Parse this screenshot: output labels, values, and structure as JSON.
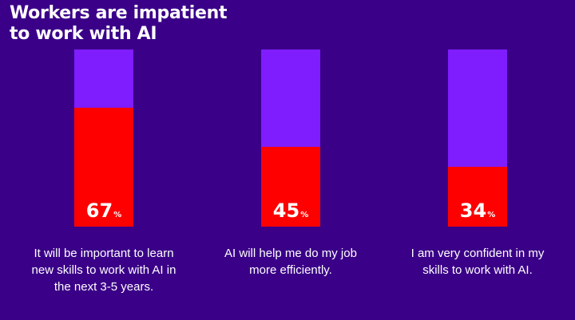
{
  "title": "Workers are impatient to work with AI",
  "colors": {
    "background": "#3a0088",
    "bar_track": "#7f1dff",
    "bar_fill": "#ff0000",
    "text": "#ffffff"
  },
  "chart_data": {
    "type": "bar",
    "orientation": "vertical",
    "stacked_to_100": true,
    "title": "Workers are impatient to work with AI",
    "unit": "%",
    "ylim": [
      0,
      100
    ],
    "categories": [
      "It will be important to learn new skills to work with AI in the next 3-5 years.",
      "AI will help me do my job more efficiently.",
      "I am very confident in my skills to work with AI."
    ],
    "values": [
      67,
      45,
      34
    ],
    "value_suffix": "%",
    "grid": false,
    "legend": "none"
  }
}
